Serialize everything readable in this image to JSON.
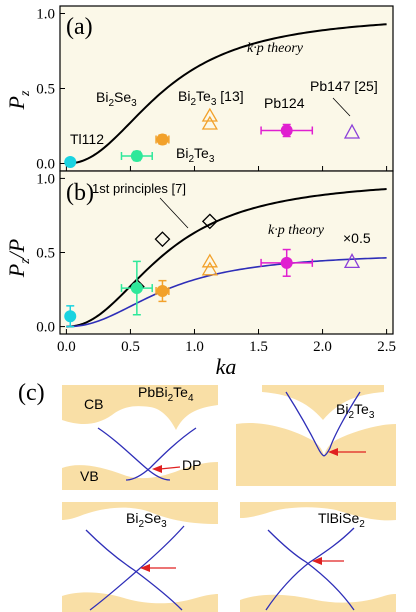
{
  "colors": {
    "background_panel": "#fbf8e8",
    "theory_black": "#000000",
    "fit_blue": "#2e2eb8",
    "band_fill": "#f9dfa6",
    "arrow_red": "#e02020",
    "cyan": "#19d3e0",
    "green": "#2ee89a",
    "orange": "#f2a12a",
    "magenta": "#e020d0",
    "purple": "#8b3fd9"
  },
  "chart_data": [
    {
      "id": "a",
      "type": "scatter",
      "panel_label": "(a)",
      "ylabel_main": "P",
      "ylabel_sub": "z",
      "xlim": [
        -0.05,
        2.55
      ],
      "ylim": [
        -0.05,
        1.05
      ],
      "yticks": [
        "0.0",
        "0.5",
        "1.0"
      ],
      "theory_label": "k·p theory",
      "points": [
        {
          "label": "Tl112",
          "x": 0.03,
          "y": 0.01,
          "xerr": 0.0,
          "yerr": 0.02,
          "marker": "circle-filled",
          "color": "cyan"
        },
        {
          "label": "Bi2Se3",
          "x": 0.55,
          "y": 0.05,
          "xerr": 0.12,
          "yerr": 0.03,
          "marker": "circle-filled",
          "color": "green"
        },
        {
          "label": "Bi2Te3",
          "x": 0.75,
          "y": 0.16,
          "xerr": 0.05,
          "yerr": 0.03,
          "marker": "circle-filled",
          "color": "orange"
        },
        {
          "label": "Bi2Te3 [13]",
          "x": 1.12,
          "y": 0.29,
          "xerr": 0.0,
          "yerr": 0.0,
          "marker": "triangle-open-double",
          "color": "orange"
        },
        {
          "label": "Pb124",
          "x": 1.72,
          "y": 0.22,
          "xerr": 0.2,
          "yerr": 0.04,
          "marker": "circle-filled",
          "color": "magenta"
        },
        {
          "label": "Pb147 [25]",
          "x": 2.23,
          "y": 0.21,
          "xerr": 0.0,
          "yerr": 0.0,
          "marker": "triangle-open",
          "color": "purple"
        }
      ]
    },
    {
      "id": "b",
      "type": "scatter",
      "panel_label": "(b)",
      "ylabel_main": "P",
      "ylabel_sub": "z",
      "ylabel_tail": "/P",
      "xlabel": "ka",
      "xlim": [
        -0.05,
        2.55
      ],
      "ylim": [
        -0.05,
        1.05
      ],
      "yticks": [
        "0.0",
        "0.5",
        "1.0"
      ],
      "xticks": [
        "0.0",
        "0.5",
        "1.0",
        "1.5",
        "2.0",
        "2.5"
      ],
      "theory_label": "k·p theory",
      "first_principles_label": "1st principles [7]",
      "scale_label": "×0.5",
      "first_principles": [
        {
          "x": 0.55,
          "y": 0.27
        },
        {
          "x": 0.75,
          "y": 0.59
        },
        {
          "x": 1.12,
          "y": 0.71
        }
      ],
      "points": [
        {
          "x": 0.03,
          "y": 0.07,
          "xerr": 0.0,
          "yerr": 0.07,
          "marker": "circle-filled",
          "color": "cyan"
        },
        {
          "x": 0.55,
          "y": 0.26,
          "xerr": 0.12,
          "yerr": 0.18,
          "marker": "circle-filled",
          "color": "green"
        },
        {
          "x": 0.75,
          "y": 0.24,
          "xerr": 0.05,
          "yerr": 0.07,
          "marker": "circle-filled",
          "color": "orange"
        },
        {
          "x": 1.12,
          "y": 0.41,
          "xerr": 0.0,
          "yerr": 0.0,
          "marker": "triangle-open-double",
          "color": "orange"
        },
        {
          "x": 1.72,
          "y": 0.43,
          "xerr": 0.2,
          "yerr": 0.09,
          "marker": "circle-filled",
          "color": "magenta"
        },
        {
          "x": 2.23,
          "y": 0.44,
          "xerr": 0.0,
          "yerr": 0.0,
          "marker": "triangle-open",
          "color": "purple"
        }
      ]
    }
  ],
  "panel_c": {
    "label": "(c)",
    "subpanels": [
      {
        "title": "PbBi2Te4",
        "title_main": "PbBi",
        "s1": "2",
        "mid": "Te",
        "s2": "4",
        "labels": {
          "cb": "CB",
          "vb": "VB",
          "dp": "DP"
        }
      },
      {
        "title": "Bi2Te3",
        "title_main": "Bi",
        "s1": "2",
        "mid": "Te",
        "s2": "3"
      },
      {
        "title": "Bi2Se3",
        "title_main": "Bi",
        "s1": "2",
        "mid": "Se",
        "s2": "3"
      },
      {
        "title": "TlBiSe2",
        "title_main": "TlBiSe",
        "s1": "2",
        "mid": "",
        "s2": ""
      }
    ]
  }
}
